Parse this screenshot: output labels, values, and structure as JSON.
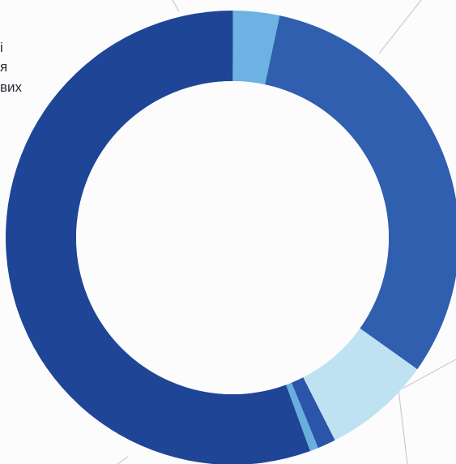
{
  "chart_data": {
    "type": "pie",
    "donut": true,
    "unit": "percent",
    "slices": [
      {
        "name": "",
        "value": 31.5,
        "color": "#2f5fae"
      },
      {
        "name": "",
        "value": 7.7,
        "color": "#bfe2f2"
      },
      {
        "name": "",
        "value": 1.3,
        "color": "#2a55a8"
      },
      {
        "name": "",
        "value": 0.6,
        "color": "#6aaede"
      },
      {
        "name": "",
        "value": 55.6,
        "color": "#1f4596"
      },
      {
        "name": "",
        "value": 3.3,
        "color": "#6cb3e3"
      }
    ],
    "annotations": [
      "і",
      "я",
      "вих"
    ]
  },
  "leader_line_color": "#c9c9cf",
  "hole_color": "#fdfcfd"
}
